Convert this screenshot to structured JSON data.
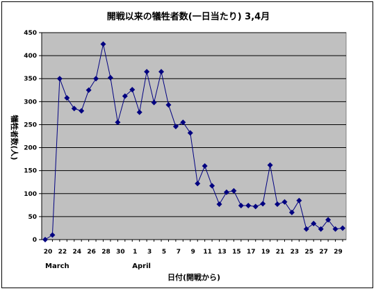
{
  "chart_data": {
    "type": "line",
    "title": "開戦以来の犠牲者数(一日当たり) 3,4月",
    "xlabel": "日付(開戦から)",
    "ylabel": "犠牲者数(人)",
    "ylim": [
      0,
      450
    ],
    "y_ticks": [
      0,
      50,
      100,
      150,
      200,
      250,
      300,
      350,
      400,
      450
    ],
    "x_tick_labels": [
      "20",
      "22",
      "24",
      "26",
      "28",
      "30",
      "1",
      "3",
      "5",
      "7",
      "9",
      "11",
      "13",
      "15",
      "17",
      "19",
      "21",
      "23",
      "25",
      "27",
      "29"
    ],
    "month_labels": [
      "March",
      "April"
    ],
    "grid": true,
    "background": "#c0c0c0",
    "line_color": "#000080",
    "marker": "diamond",
    "series": [
      {
        "values": [
          0,
          10,
          350,
          308,
          285,
          280,
          325,
          350,
          425,
          352,
          255,
          312,
          326,
          277,
          365,
          298,
          365,
          293,
          246,
          255,
          232,
          122,
          160,
          117,
          77,
          103,
          106,
          74,
          74,
          72,
          78,
          162,
          77,
          82,
          59,
          85,
          23,
          35,
          23,
          43,
          23,
          25
        ]
      }
    ]
  }
}
